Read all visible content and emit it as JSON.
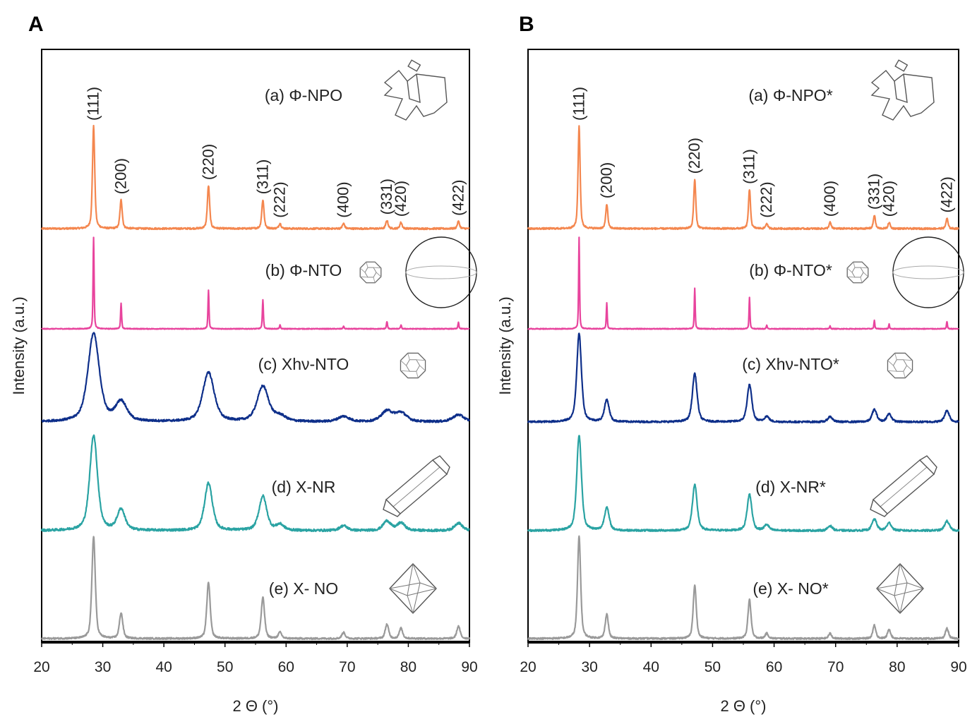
{
  "figure": {
    "panels": [
      "A",
      "B"
    ]
  },
  "chart_data": [
    {
      "type": "line",
      "panel": "A",
      "xlabel": "2 Θ (°)",
      "ylabel": "Intensity (a.u.)",
      "xlim": [
        20,
        90
      ],
      "xticks": [
        20,
        30,
        40,
        50,
        60,
        70,
        80,
        90
      ],
      "reflections": [
        {
          "hkl": "(111)",
          "x": 28.5
        },
        {
          "hkl": "(200)",
          "x": 33.0
        },
        {
          "hkl": "(220)",
          "x": 47.3
        },
        {
          "hkl": "(311)",
          "x": 56.2
        },
        {
          "hkl": "(222)",
          "x": 59.0
        },
        {
          "hkl": "(400)",
          "x": 69.4
        },
        {
          "hkl": "(331)",
          "x": 76.5
        },
        {
          "hkl": "(420)",
          "x": 78.8
        },
        {
          "hkl": "(422)",
          "x": 88.2
        }
      ],
      "series": [
        {
          "name": "(a) Φ-NPO",
          "color": "#f4874f",
          "morphology": "irregular-particle-icon",
          "peak_width": 0.22,
          "noise": 0.004,
          "peaks": [
            [
              28.5,
              1.0
            ],
            [
              33.0,
              0.28
            ],
            [
              47.3,
              0.42
            ],
            [
              56.2,
              0.28
            ],
            [
              59.0,
              0.05
            ],
            [
              69.4,
              0.05
            ],
            [
              76.5,
              0.08
            ],
            [
              78.8,
              0.06
            ],
            [
              88.2,
              0.07
            ]
          ]
        },
        {
          "name": "(b) Φ-NTO",
          "color": "#e8449d",
          "morphology": "sphere-icon",
          "peak_width": 0.1,
          "noise": 0.002,
          "peaks": [
            [
              28.5,
              1.0
            ],
            [
              33.0,
              0.28
            ],
            [
              47.3,
              0.42
            ],
            [
              56.2,
              0.32
            ],
            [
              59.0,
              0.04
            ],
            [
              69.4,
              0.03
            ],
            [
              76.5,
              0.08
            ],
            [
              78.8,
              0.04
            ],
            [
              88.2,
              0.07
            ]
          ]
        },
        {
          "name": "(c) Xhν-NTO",
          "color": "#0e2f8a",
          "morphology": "truncated-octahedron-icon",
          "peak_width": 1.1,
          "noise": 0.006,
          "peaks": [
            [
              28.5,
              1.0
            ],
            [
              33.0,
              0.22
            ],
            [
              47.3,
              0.56
            ],
            [
              56.2,
              0.4
            ],
            [
              59.0,
              0.06
            ],
            [
              69.4,
              0.06
            ],
            [
              76.5,
              0.12
            ],
            [
              78.8,
              0.1
            ],
            [
              88.2,
              0.08
            ]
          ]
        },
        {
          "name": "(d) X-NR",
          "color": "#2aa3a3",
          "morphology": "nanorod-icon",
          "peak_width": 0.75,
          "noise": 0.006,
          "peaks": [
            [
              28.5,
              1.0
            ],
            [
              33.0,
              0.22
            ],
            [
              47.3,
              0.5
            ],
            [
              56.2,
              0.36
            ],
            [
              59.0,
              0.06
            ],
            [
              69.4,
              0.05
            ],
            [
              76.5,
              0.1
            ],
            [
              78.8,
              0.08
            ],
            [
              88.2,
              0.08
            ]
          ]
        },
        {
          "name": "(e) X- NO",
          "color": "#9a9a9a",
          "morphology": "octahedron-icon",
          "peak_width": 0.33,
          "noise": 0.004,
          "peaks": [
            [
              28.5,
              1.0
            ],
            [
              33.0,
              0.25
            ],
            [
              47.3,
              0.55
            ],
            [
              56.2,
              0.4
            ],
            [
              59.0,
              0.06
            ],
            [
              69.4,
              0.06
            ],
            [
              76.5,
              0.14
            ],
            [
              78.8,
              0.1
            ],
            [
              88.2,
              0.12
            ]
          ]
        }
      ]
    },
    {
      "type": "line",
      "panel": "B",
      "xlabel": "2 Θ (°)",
      "ylabel": "Intensity (a.u.)",
      "xlim": [
        20,
        90
      ],
      "xticks": [
        20,
        30,
        40,
        50,
        60,
        70,
        80,
        90
      ],
      "reflections": [
        {
          "hkl": "(111)",
          "x": 28.3
        },
        {
          "hkl": "(200)",
          "x": 32.8
        },
        {
          "hkl": "(220)",
          "x": 47.1
        },
        {
          "hkl": "(311)",
          "x": 56.0
        },
        {
          "hkl": "(222)",
          "x": 58.8
        },
        {
          "hkl": "(400)",
          "x": 69.1
        },
        {
          "hkl": "(331)",
          "x": 76.3
        },
        {
          "hkl": "(420)",
          "x": 78.7
        },
        {
          "hkl": "(422)",
          "x": 88.1
        }
      ],
      "series": [
        {
          "name": "(a) Φ-NPO*",
          "color": "#f4874f",
          "morphology": "irregular-particle-icon",
          "peak_width": 0.2,
          "noise": 0.004,
          "peaks": [
            [
              28.3,
              1.0
            ],
            [
              32.8,
              0.24
            ],
            [
              47.1,
              0.48
            ],
            [
              56.0,
              0.38
            ],
            [
              58.8,
              0.05
            ],
            [
              69.1,
              0.06
            ],
            [
              76.3,
              0.13
            ],
            [
              78.7,
              0.06
            ],
            [
              88.1,
              0.1
            ]
          ]
        },
        {
          "name": "(b) Φ-NTO*",
          "color": "#e8449d",
          "morphology": "sphere-icon",
          "peak_width": 0.09,
          "noise": 0.002,
          "peaks": [
            [
              28.3,
              1.0
            ],
            [
              32.8,
              0.28
            ],
            [
              47.1,
              0.44
            ],
            [
              56.0,
              0.34
            ],
            [
              58.8,
              0.04
            ],
            [
              69.1,
              0.03
            ],
            [
              76.3,
              0.09
            ],
            [
              78.7,
              0.05
            ],
            [
              88.1,
              0.08
            ]
          ]
        },
        {
          "name": "(c) Xhν-NTO*",
          "color": "#0e2f8a",
          "morphology": "truncated-octahedron-icon",
          "peak_width": 0.45,
          "noise": 0.005,
          "peaks": [
            [
              28.3,
              1.0
            ],
            [
              32.8,
              0.25
            ],
            [
              47.1,
              0.55
            ],
            [
              56.0,
              0.42
            ],
            [
              58.8,
              0.06
            ],
            [
              69.1,
              0.06
            ],
            [
              76.3,
              0.14
            ],
            [
              78.7,
              0.09
            ],
            [
              88.1,
              0.13
            ]
          ]
        },
        {
          "name": "(d) X-NR*",
          "color": "#2aa3a3",
          "morphology": "nanorod-icon",
          "peak_width": 0.45,
          "noise": 0.005,
          "peaks": [
            [
              28.3,
              1.0
            ],
            [
              32.8,
              0.24
            ],
            [
              47.1,
              0.48
            ],
            [
              56.0,
              0.38
            ],
            [
              58.8,
              0.06
            ],
            [
              69.1,
              0.05
            ],
            [
              76.3,
              0.12
            ],
            [
              78.7,
              0.08
            ],
            [
              88.1,
              0.1
            ]
          ]
        },
        {
          "name": "(e) X- NO*",
          "color": "#9a9a9a",
          "morphology": "octahedron-icon",
          "peak_width": 0.3,
          "noise": 0.004,
          "peaks": [
            [
              28.3,
              1.0
            ],
            [
              32.8,
              0.24
            ],
            [
              47.1,
              0.52
            ],
            [
              56.0,
              0.38
            ],
            [
              58.8,
              0.05
            ],
            [
              69.1,
              0.05
            ],
            [
              76.3,
              0.13
            ],
            [
              78.7,
              0.09
            ],
            [
              88.1,
              0.1
            ]
          ]
        }
      ]
    }
  ]
}
